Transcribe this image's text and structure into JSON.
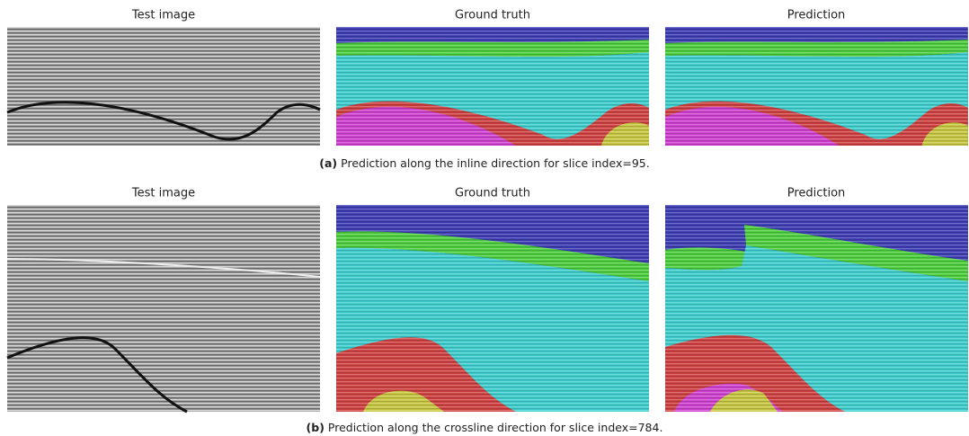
{
  "rows": [
    {
      "titles": [
        "Test image",
        "Ground truth",
        "Prediction"
      ],
      "caption": {
        "label": "(a)",
        "text": "Prediction along the inline direction for slice index=95."
      }
    },
    {
      "titles": [
        "Test image",
        "Ground truth",
        "Prediction"
      ],
      "caption": {
        "label": "(b)",
        "text": "Prediction along the crossline direction for slice index=784."
      }
    }
  ]
}
